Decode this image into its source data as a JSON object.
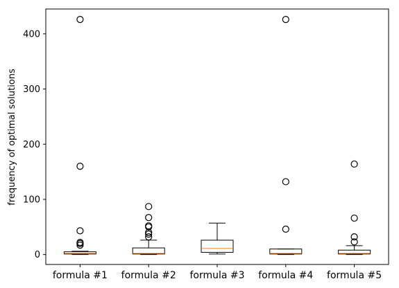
{
  "chart_data": {
    "type": "box",
    "title": "",
    "xlabel": "",
    "ylabel": "frequency of optimal solutions",
    "ylim": [
      -18,
      445
    ],
    "yticks": [
      0,
      100,
      200,
      300,
      400
    ],
    "grid": false,
    "legend": "none",
    "colors": {
      "box": "#000000",
      "median": "#ff7f0e",
      "flier": "#000000"
    },
    "categories": [
      "formula #1",
      "formula #2",
      "formula #3",
      "formula #4",
      "formula #5"
    ],
    "boxes": [
      {
        "q1": 1,
        "median": 2,
        "q3": 5,
        "whisker_low": 0,
        "whisker_high": 6,
        "fliers": [
          17,
          20,
          22,
          43,
          160,
          426
        ]
      },
      {
        "q1": 1,
        "median": 2,
        "q3": 12,
        "whisker_low": 0,
        "whisker_high": 26,
        "fliers": [
          32,
          37,
          40,
          50,
          52,
          67,
          87
        ]
      },
      {
        "q1": 4,
        "median": 11,
        "q3": 26,
        "whisker_low": 1,
        "whisker_high": 57,
        "fliers": []
      },
      {
        "q1": 1,
        "median": 2,
        "q3": 10,
        "whisker_low": 0,
        "whisker_high": 10,
        "fliers": [
          46,
          132,
          426
        ]
      },
      {
        "q1": 1,
        "median": 2,
        "q3": 8,
        "whisker_low": 0,
        "whisker_high": 16,
        "fliers": [
          23,
          32,
          66,
          164
        ]
      }
    ]
  }
}
